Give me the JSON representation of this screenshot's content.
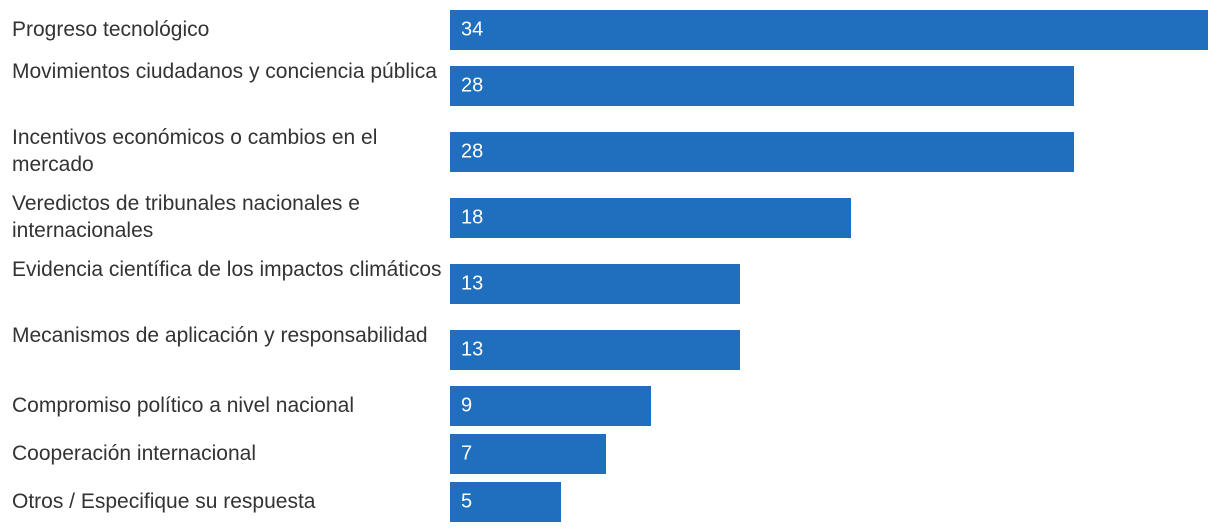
{
  "chart_data": {
    "type": "bar",
    "orientation": "horizontal",
    "title": "",
    "xlabel": "",
    "ylabel": "",
    "bar_color": "#1f6fbe",
    "label_color": "#333333",
    "value_label_color": "#ffffff",
    "xlim": [
      0,
      34
    ],
    "categories": [
      "Progreso tecnológico",
      "Movimientos ciudadanos y conciencia pública",
      "Incentivos económicos o cambios en el mercado",
      "Veredictos de tribunales nacionales e internacionales",
      "Evidencia científica de los impactos climáticos",
      "Mecanismos de aplicación y responsabilidad",
      "Compromiso político a nivel nacional",
      "Cooperación internacional",
      "Otros / Especifique su respuesta"
    ],
    "values": [
      34,
      28,
      28,
      18,
      13,
      13,
      9,
      7,
      5
    ]
  }
}
